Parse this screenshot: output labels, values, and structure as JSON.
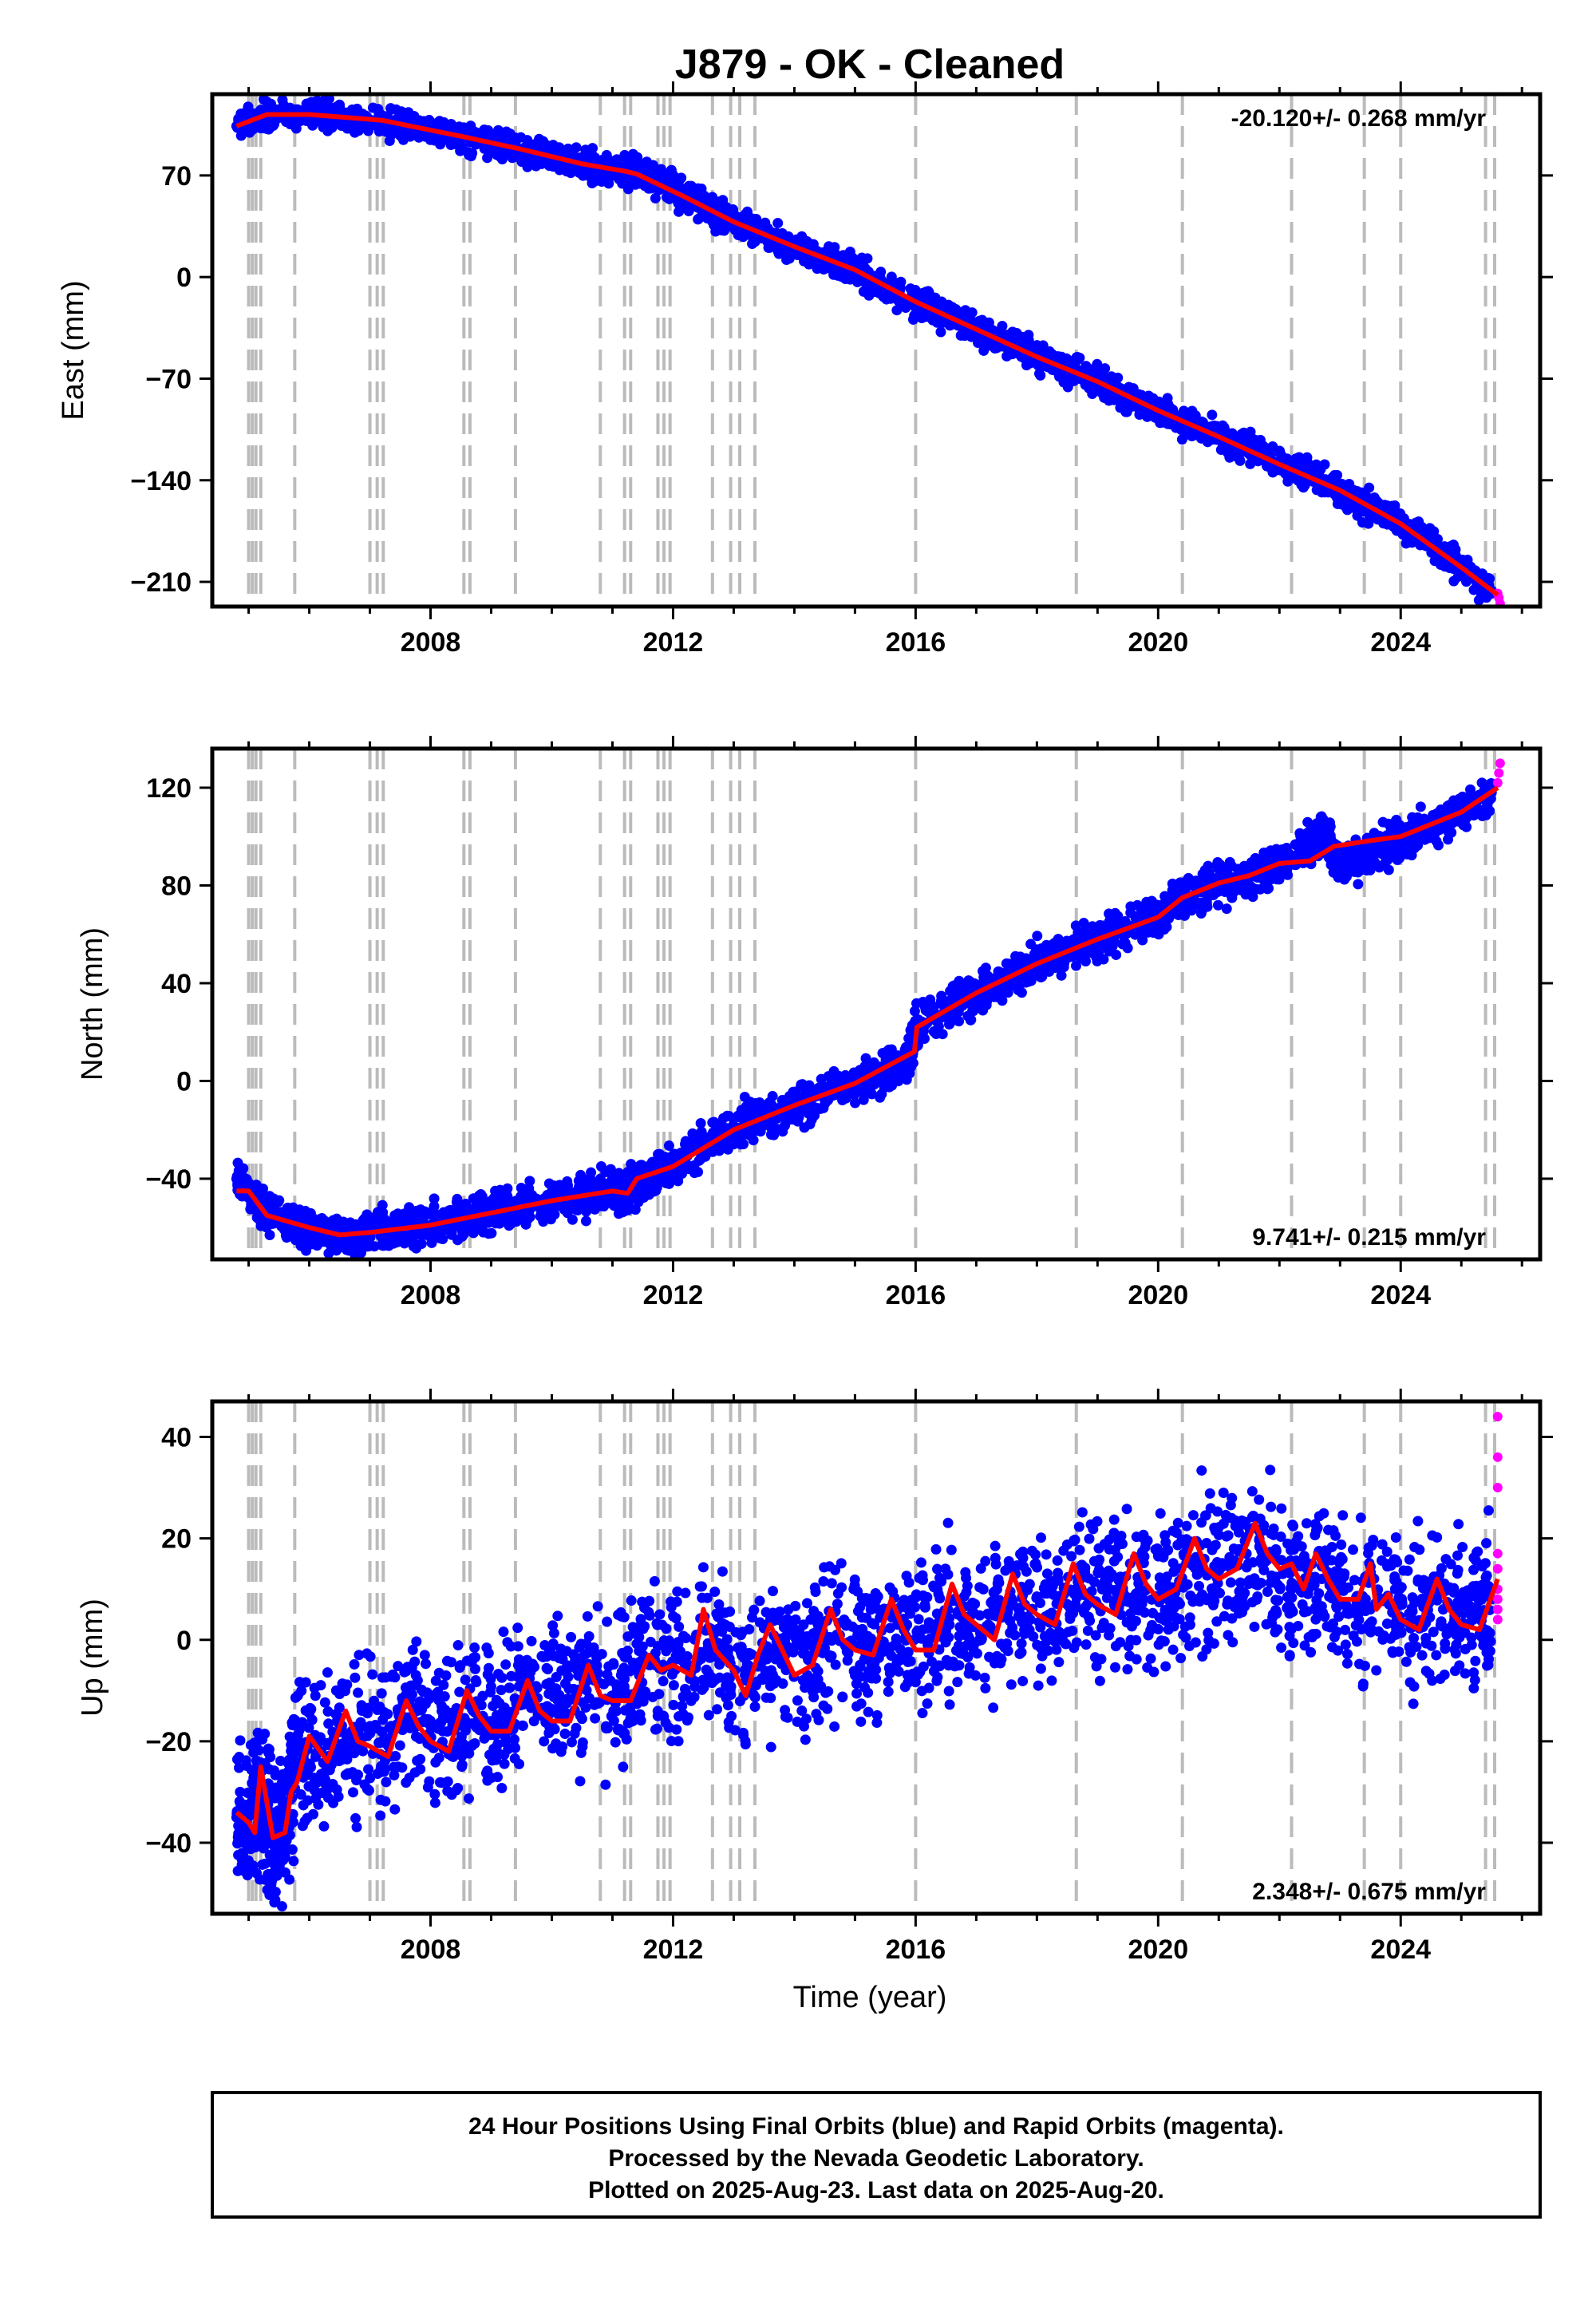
{
  "title": "J879  - OK - Cleaned",
  "xlabel": "Time (year)",
  "footer": [
    "24 Hour Positions Using Final Orbits (blue) and Rapid Orbits (magenta).",
    "Processed by the Nevada Geodetic Laboratory.",
    "Plotted on 2025-Aug-23. Last data on 2025-Aug-20."
  ],
  "colors": {
    "final": "#0000ff",
    "rapid": "#ff00ff",
    "model": "#ff0000",
    "events": "#bbbbbb",
    "frame": "#000000"
  },
  "chart_data": [
    {
      "type": "scatter",
      "ylabel": "East (mm)",
      "rate": "-20.120+/- 0.268 mm/yr",
      "xlim": [
        2004.4,
        2026.3
      ],
      "ylim": [
        -227,
        126
      ],
      "xticks": [
        2008,
        2012,
        2016,
        2020,
        2024
      ],
      "yticks": [
        70,
        0,
        -70,
        -140,
        -210
      ],
      "series": [
        {
          "kind": "final",
          "x": [
            2004.8,
            2005.3,
            2006.0,
            2006.5,
            2007.2,
            2007.8,
            2008.5,
            2009.0,
            2009.5,
            2010.0,
            2010.5,
            2011.0,
            2011.4,
            2011.8,
            2012.2,
            2012.6,
            2013.0,
            2013.4,
            2014.0,
            2014.5,
            2015.0,
            2015.5,
            2016.0,
            2016.5,
            2017.0,
            2017.5,
            2018.0,
            2018.5,
            2019.0,
            2019.5,
            2020.0,
            2020.5,
            2021.0,
            2021.5,
            2022.0,
            2022.5,
            2023.0,
            2023.5,
            2024.0,
            2024.5,
            2025.0,
            2025.5
          ],
          "values": [
            104,
            112,
            112,
            110,
            108,
            104,
            97,
            93,
            88,
            83,
            78,
            73,
            72,
            65,
            55,
            46,
            38,
            32,
            21,
            13,
            5,
            -7,
            -17,
            -26,
            -36,
            -44,
            -55,
            -63,
            -72,
            -83,
            -92,
            -101,
            -110,
            -118,
            -129,
            -137,
            -147,
            -158,
            -170,
            -183,
            -200,
            -216
          ]
        },
        {
          "kind": "rapid",
          "x": [
            2025.6,
            2025.62,
            2025.64
          ],
          "values": [
            -218,
            -221,
            -225
          ]
        },
        {
          "kind": "model",
          "x": [
            2004.8,
            2005.3,
            2006.0,
            2007.2,
            2008.5,
            2009.5,
            2010.5,
            2011.2,
            2011.4,
            2012.2,
            2013.0,
            2014.0,
            2015.0,
            2016.0,
            2017.0,
            2018.0,
            2019.0,
            2020.0,
            2021.0,
            2022.0,
            2023.0,
            2024.0,
            2025.0,
            2025.6
          ],
          "values": [
            104,
            112,
            112,
            108,
            97,
            88,
            78,
            73,
            71,
            55,
            38,
            21,
            5,
            -17,
            -36,
            -55,
            -72,
            -92,
            -110,
            -129,
            -147,
            -170,
            -200,
            -219
          ]
        }
      ],
      "events": [
        2005.0,
        2005.06,
        2005.12,
        2005.2,
        2005.76,
        2007.0,
        2007.12,
        2007.22,
        2008.55,
        2008.65,
        2009.4,
        2010.8,
        2011.2,
        2011.3,
        2011.75,
        2011.85,
        2011.95,
        2012.65,
        2012.95,
        2013.1,
        2013.35,
        2016.0,
        2018.65,
        2020.4,
        2022.2,
        2023.4,
        2024.0,
        2025.4,
        2025.55
      ]
    },
    {
      "type": "scatter",
      "ylabel": "North (mm)",
      "rate": "9.741+/- 0.215 mm/yr",
      "xlim": [
        2004.4,
        2026.3
      ],
      "ylim": [
        -73,
        136
      ],
      "xticks": [
        2008,
        2012,
        2016,
        2020,
        2024
      ],
      "yticks": [
        120,
        80,
        40,
        0,
        -40
      ],
      "series": [
        {
          "kind": "final",
          "x": [
            2004.8,
            2005.2,
            2005.6,
            2006.0,
            2006.5,
            2007.0,
            2007.5,
            2008.0,
            2008.5,
            2009.0,
            2009.5,
            2010.0,
            2010.5,
            2011.0,
            2011.2,
            2011.5,
            2012.0,
            2012.5,
            2013.0,
            2013.5,
            2014.0,
            2014.5,
            2015.0,
            2015.5,
            2015.9,
            2016.0,
            2016.5,
            2017.0,
            2017.5,
            2018.0,
            2018.5,
            2019.0,
            2019.5,
            2020.0,
            2020.5,
            2021.0,
            2021.5,
            2022.0,
            2022.5,
            2022.8,
            2022.9,
            2023.2,
            2023.6,
            2024.0,
            2024.5,
            2025.0,
            2025.5
          ],
          "values": [
            -40,
            -52,
            -58,
            -61,
            -63,
            -62,
            -60,
            -59,
            -56,
            -54,
            -51,
            -49,
            -47,
            -44,
            -47,
            -40,
            -35,
            -26,
            -19,
            -15,
            -10,
            -5,
            -1,
            3,
            9,
            22,
            30,
            36,
            42,
            48,
            53,
            58,
            63,
            67,
            75,
            81,
            84,
            89,
            96,
            102,
            89,
            91,
            94,
            98,
            104,
            110,
            118
          ]
        },
        {
          "kind": "rapid",
          "x": [
            2025.6,
            2025.62,
            2025.64
          ],
          "values": [
            122,
            126,
            130
          ]
        },
        {
          "kind": "model",
          "x": [
            2004.8,
            2005.0,
            2005.3,
            2006.0,
            2006.5,
            2007.0,
            2008.0,
            2009.0,
            2010.0,
            2011.0,
            2011.25,
            2011.4,
            2012.0,
            2013.0,
            2014.0,
            2015.0,
            2015.98,
            2016.02,
            2017.0,
            2018.0,
            2019.0,
            2020.0,
            2020.4,
            2021.0,
            2021.5,
            2022.0,
            2022.5,
            2022.9,
            2023.4,
            2024.0,
            2025.0,
            2025.6
          ],
          "values": [
            -45,
            -45,
            -55,
            -60,
            -63,
            -62,
            -59,
            -54,
            -49,
            -45,
            -46,
            -40,
            -35,
            -20,
            -10,
            -1,
            12,
            22,
            36,
            48,
            58,
            67,
            75,
            81,
            84,
            89,
            90,
            96,
            98,
            100,
            110,
            120
          ]
        }
      ],
      "events": [
        2005.0,
        2005.06,
        2005.12,
        2005.2,
        2005.76,
        2007.0,
        2007.12,
        2007.22,
        2008.55,
        2008.65,
        2009.4,
        2010.8,
        2011.2,
        2011.3,
        2011.75,
        2011.85,
        2011.95,
        2012.65,
        2012.95,
        2013.1,
        2013.35,
        2016.0,
        2018.65,
        2020.4,
        2022.2,
        2023.4,
        2024.0,
        2025.4,
        2025.55
      ]
    },
    {
      "type": "scatter",
      "ylabel": "Up (mm)",
      "rate": "2.348+/- 0.675 mm/yr",
      "xlim": [
        2004.4,
        2026.3
      ],
      "ylim": [
        -54,
        47
      ],
      "xticks": [
        2008,
        2012,
        2016,
        2020,
        2024
      ],
      "yticks": [
        40,
        20,
        0,
        -20,
        -40
      ],
      "series": [
        {
          "kind": "final",
          "x": [
            2004.8,
            2005.0,
            2005.2,
            2005.4,
            2005.6,
            2005.8,
            2006.2,
            2006.7,
            2007.2,
            2007.7,
            2008.2,
            2008.7,
            2009.2,
            2009.7,
            2010.2,
            2010.7,
            2011.2,
            2011.7,
            2012.2,
            2012.7,
            2013.2,
            2013.7,
            2014.2,
            2014.7,
            2015.2,
            2015.7,
            2016.2,
            2016.7,
            2017.2,
            2017.7,
            2018.2,
            2018.7,
            2019.2,
            2019.7,
            2020.2,
            2020.7,
            2021.2,
            2021.7,
            2022.2,
            2022.7,
            2023.2,
            2023.7,
            2024.2,
            2024.7,
            2025.2,
            2025.5
          ],
          "values": [
            -35,
            -38,
            -30,
            -39,
            -35,
            -22,
            -22,
            -18,
            -20,
            -15,
            -18,
            -14,
            -14,
            -10,
            -12,
            -8,
            -10,
            -4,
            -5,
            -1,
            -8,
            -3,
            -3,
            1,
            -2,
            3,
            -1,
            5,
            3,
            6,
            5,
            9,
            10,
            10,
            10,
            14,
            15,
            16,
            10,
            12,
            6,
            8,
            4,
            6,
            4,
            8
          ]
        },
        {
          "kind": "rapid",
          "x": [
            2025.6,
            2025.6,
            2025.6,
            2025.6,
            2025.6,
            2025.6,
            2025.6,
            2025.6,
            2025.6
          ],
          "values": [
            44,
            36,
            30,
            17,
            14,
            10,
            8,
            6,
            4
          ]
        },
        {
          "kind": "model",
          "x": [
            2004.8,
            2005.0,
            2005.1,
            2005.2,
            2005.4,
            2005.6,
            2005.7,
            2005.8,
            2006.0,
            2006.3,
            2006.6,
            2006.8,
            2007.0,
            2007.3,
            2007.6,
            2007.8,
            2008.0,
            2008.3,
            2008.6,
            2008.8,
            2009.0,
            2009.3,
            2009.6,
            2009.8,
            2010.0,
            2010.3,
            2010.6,
            2010.8,
            2011.0,
            2011.3,
            2011.6,
            2011.8,
            2012.0,
            2012.3,
            2012.5,
            2012.7,
            2013.0,
            2013.2,
            2013.4,
            2013.6,
            2014.0,
            2014.3,
            2014.6,
            2014.8,
            2015.0,
            2015.3,
            2015.6,
            2015.8,
            2016.0,
            2016.3,
            2016.6,
            2016.8,
            2017.0,
            2017.3,
            2017.6,
            2017.8,
            2018.0,
            2018.3,
            2018.6,
            2018.8,
            2019.0,
            2019.3,
            2019.6,
            2019.8,
            2020.0,
            2020.3,
            2020.6,
            2020.8,
            2021.0,
            2021.3,
            2021.6,
            2021.8,
            2022.0,
            2022.2,
            2022.4,
            2022.6,
            2022.8,
            2023.0,
            2023.3,
            2023.5,
            2023.6,
            2023.8,
            2024.0,
            2024.3,
            2024.6,
            2024.8,
            2025.0,
            2025.3,
            2025.6
          ],
          "values": [
            -34,
            -36,
            -38,
            -25,
            -39,
            -38,
            -30,
            -28,
            -19,
            -24,
            -14,
            -20,
            -21,
            -23,
            -12,
            -17,
            -20,
            -22,
            -10,
            -15,
            -18,
            -18,
            -8,
            -14,
            -16,
            -16,
            -5,
            -11,
            -12,
            -12,
            -3,
            -6,
            -5,
            -7,
            6,
            -2,
            -6,
            -11,
            -3,
            3,
            -7,
            -5,
            6,
            0,
            -2,
            -3,
            8,
            2,
            -2,
            -2,
            11,
            5,
            3,
            0,
            13,
            7,
            5,
            3,
            15,
            9,
            7,
            5,
            17,
            11,
            8,
            10,
            20,
            14,
            12,
            14,
            23,
            17,
            14,
            15,
            10,
            17,
            12,
            8,
            8,
            15,
            6,
            9,
            4,
            2,
            12,
            6,
            3,
            2,
            12
          ]
        }
      ],
      "events": [
        2005.0,
        2005.06,
        2005.12,
        2005.2,
        2005.76,
        2007.0,
        2007.12,
        2007.22,
        2008.55,
        2008.65,
        2009.4,
        2010.8,
        2011.2,
        2011.3,
        2011.75,
        2011.85,
        2011.95,
        2012.65,
        2012.95,
        2013.1,
        2013.35,
        2016.0,
        2018.65,
        2020.4,
        2022.2,
        2023.4,
        2024.0,
        2025.4,
        2025.55
      ]
    }
  ]
}
